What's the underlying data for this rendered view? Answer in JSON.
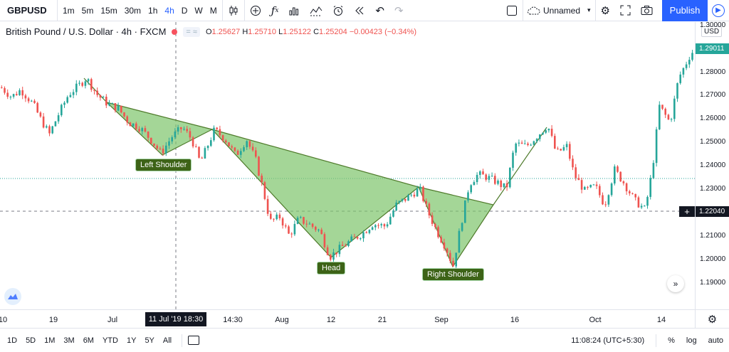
{
  "toolbar": {
    "symbol": "GBPUSD",
    "intervals": [
      "1m",
      "5m",
      "15m",
      "30m",
      "1h",
      "4h",
      "D",
      "W",
      "M"
    ],
    "active_interval": "4h",
    "layout_name": "Unnamed",
    "publish_label": "Publish",
    "accent_color": "#2962ff"
  },
  "legend": {
    "title": "British Pound / U.S. Dollar · 4h · FXCM",
    "open_label": "O",
    "open": "1.25627",
    "high_label": "H",
    "high": "1.25710",
    "low_label": "L",
    "low": "1.25122",
    "close_label": "C",
    "close": "1.25204",
    "change": "−0.00423 (−0.34%)"
  },
  "pattern_labels": {
    "left_shoulder": "Left Shoulder",
    "head": "Head",
    "right_shoulder": "Right Shoulder"
  },
  "price_scale": {
    "currency": "USD",
    "ticks": [
      "1.30000",
      "1.28000",
      "1.27000",
      "1.26000",
      "1.25000",
      "1.24000",
      "1.23000",
      "1.21000",
      "1.20000",
      "1.19000"
    ],
    "last_price": "1.29011",
    "crosshair_price": "1.22040"
  },
  "time_scale": {
    "ticks": [
      "10",
      "19",
      "Jul",
      "14:30",
      "Aug",
      "12",
      "21",
      "Sep",
      "16",
      "Oct",
      "14"
    ],
    "crosshair_time": "11 Jul '19   18:30"
  },
  "bottom_bar": {
    "ranges": [
      "1D",
      "5D",
      "1M",
      "3M",
      "6M",
      "YTD",
      "1Y",
      "5Y",
      "All"
    ],
    "clock": "11:08:24 (UTC+5:30)",
    "percent_label": "%",
    "log_label": "log",
    "auto_label": "auto"
  },
  "chart_data": {
    "type": "candlestick",
    "symbol": "GBPUSD",
    "timeframe": "4h",
    "up_color": "#26a69a",
    "down_color": "#ef5350",
    "pattern": "head-and-shoulders (inverse)",
    "ylim": [
      1.185,
      1.3
    ],
    "price_path": [
      [
        0,
        1.273
      ],
      [
        15,
        1.269
      ],
      [
        28,
        1.272
      ],
      [
        45,
        1.266
      ],
      [
        55,
        1.26
      ],
      [
        68,
        1.253
      ],
      [
        80,
        1.261
      ],
      [
        95,
        1.27
      ],
      [
        110,
        1.274
      ],
      [
        120,
        1.277
      ],
      [
        135,
        1.27
      ],
      [
        150,
        1.266
      ],
      [
        165,
        1.264
      ],
      [
        180,
        1.258
      ],
      [
        195,
        1.256
      ],
      [
        210,
        1.251
      ],
      [
        225,
        1.245
      ],
      [
        240,
        1.252
      ],
      [
        255,
        1.256
      ],
      [
        268,
        1.251
      ],
      [
        280,
        1.241
      ],
      [
        290,
        1.248
      ],
      [
        300,
        1.255
      ],
      [
        315,
        1.251
      ],
      [
        330,
        1.244
      ],
      [
        345,
        1.251
      ],
      [
        358,
        1.242
      ],
      [
        368,
        1.23
      ],
      [
        378,
        1.216
      ],
      [
        392,
        1.218
      ],
      [
        405,
        1.21
      ],
      [
        418,
        1.217
      ],
      [
        432,
        1.215
      ],
      [
        448,
        1.212
      ],
      [
        462,
        1.201
      ],
      [
        478,
        1.205
      ],
      [
        492,
        1.208
      ],
      [
        508,
        1.211
      ],
      [
        522,
        1.215
      ],
      [
        540,
        1.214
      ],
      [
        555,
        1.223
      ],
      [
        570,
        1.226
      ],
      [
        588,
        1.23
      ],
      [
        600,
        1.22
      ],
      [
        612,
        1.212
      ],
      [
        625,
        1.205
      ],
      [
        635,
        1.197
      ],
      [
        645,
        1.213
      ],
      [
        658,
        1.232
      ],
      [
        670,
        1.236
      ],
      [
        682,
        1.235
      ],
      [
        695,
        1.233
      ],
      [
        710,
        1.23
      ],
      [
        722,
        1.249
      ],
      [
        738,
        1.248
      ],
      [
        752,
        1.252
      ],
      [
        768,
        1.257
      ],
      [
        780,
        1.245
      ],
      [
        795,
        1.248
      ],
      [
        805,
        1.236
      ],
      [
        820,
        1.229
      ],
      [
        835,
        1.231
      ],
      [
        848,
        1.223
      ],
      [
        862,
        1.238
      ],
      [
        876,
        1.232
      ],
      [
        890,
        1.225
      ],
      [
        905,
        1.221
      ],
      [
        915,
        1.238
      ],
      [
        925,
        1.265
      ],
      [
        940,
        1.258
      ],
      [
        952,
        1.277
      ],
      [
        962,
        1.283
      ],
      [
        970,
        1.288
      ]
    ]
  }
}
